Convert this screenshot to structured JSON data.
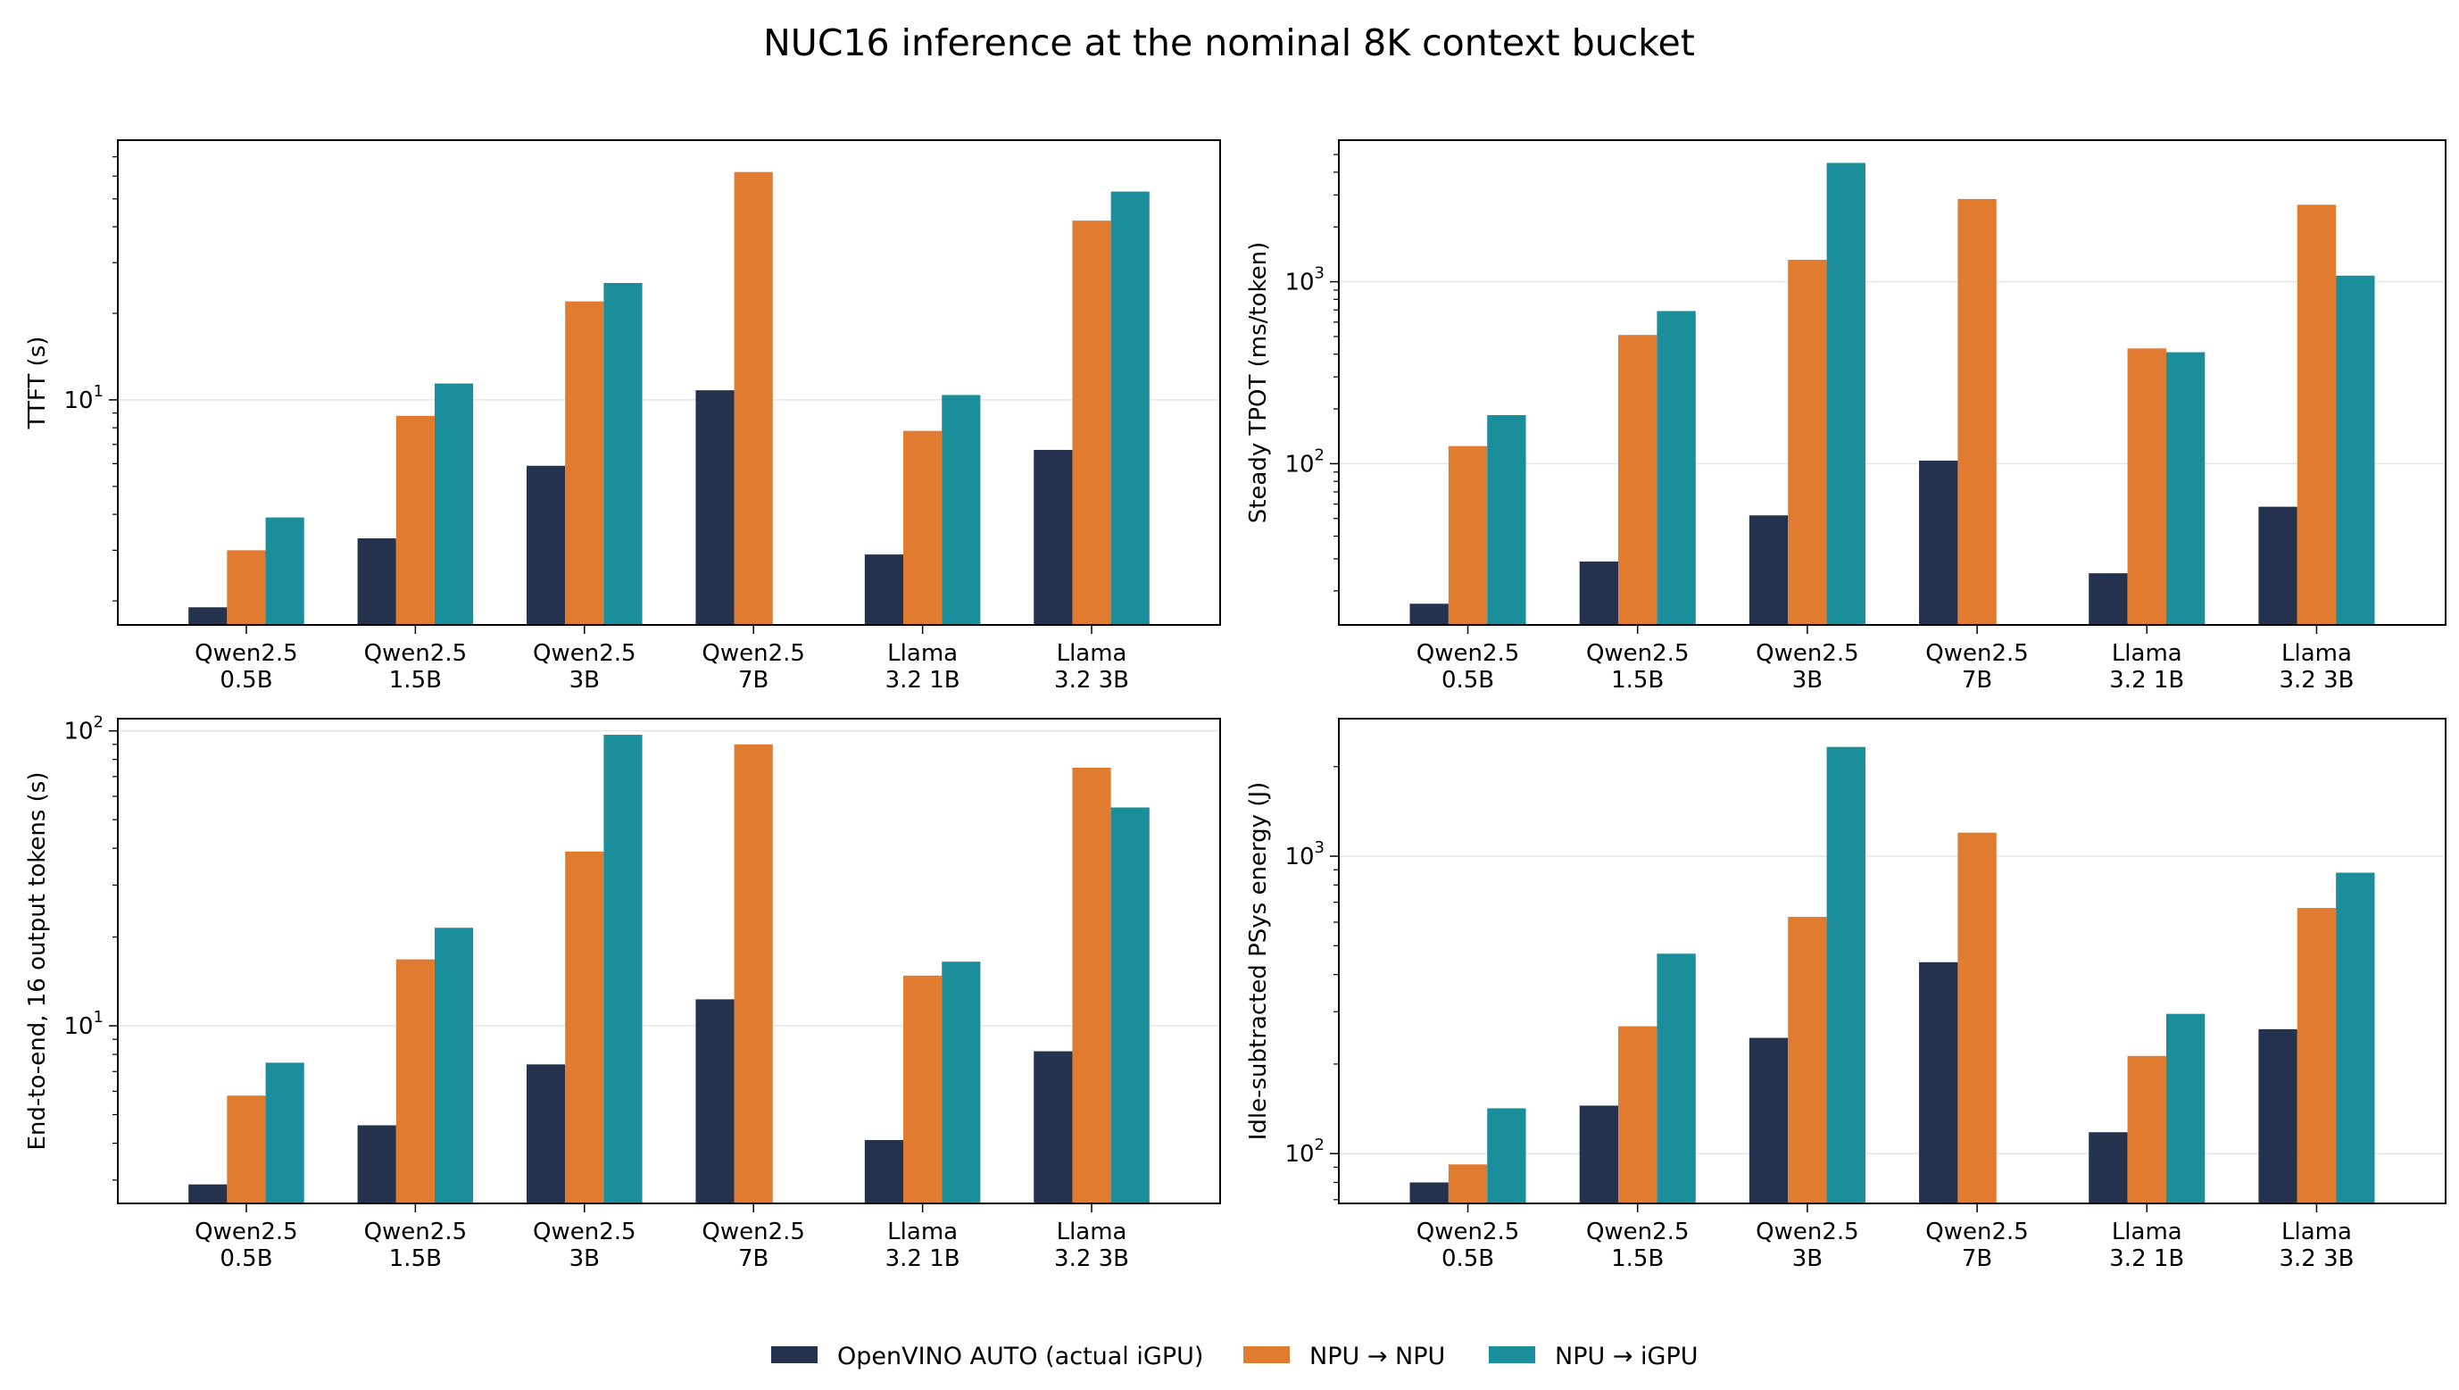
{
  "figure": {
    "title": "NUC16 inference at the nominal 8K context bucket"
  },
  "colors": {
    "series": [
      "#24324d",
      "#e07b2f",
      "#1a8f9b"
    ],
    "grid": "#e6e6e6",
    "axis": "#000000"
  },
  "legend": {
    "placement": "bottom-center",
    "items": [
      {
        "label": "OpenVINO AUTO (actual iGPU)",
        "color": "#24324d"
      },
      {
        "label": "NPU → NPU",
        "color": "#e07b2f"
      },
      {
        "label": "NPU → iGPU",
        "color": "#1a8f9b"
      }
    ]
  },
  "chart_data": [
    {
      "type": "bar",
      "scale": "log",
      "grid": "y-major",
      "ylabel": "TTFT (s)",
      "ylim": [
        1.65,
        80
      ],
      "categories": [
        [
          "Qwen2.5",
          "0.5B"
        ],
        [
          "Qwen2.5",
          "1.5B"
        ],
        [
          "Qwen2.5",
          "3B"
        ],
        [
          "Qwen2.5",
          "7B"
        ],
        [
          "Llama",
          "3.2 1B"
        ],
        [
          "Llama",
          "3.2 3B"
        ]
      ],
      "series": [
        {
          "name": "OpenVINO AUTO (actual iGPU)",
          "values": [
            1.9,
            3.3,
            5.9,
            10.8,
            2.9,
            6.7
          ]
        },
        {
          "name": "NPU → NPU",
          "values": [
            3.0,
            8.8,
            22.0,
            62.0,
            7.8,
            42.0
          ]
        },
        {
          "name": "NPU → iGPU",
          "values": [
            3.9,
            11.4,
            25.5,
            null,
            10.4,
            53.0
          ]
        }
      ]
    },
    {
      "type": "bar",
      "scale": "log",
      "grid": "y-major",
      "ylabel": "Steady TPOT (ms/token)",
      "ylim": [
        13,
        6000
      ],
      "categories": [
        [
          "Qwen2.5",
          "0.5B"
        ],
        [
          "Qwen2.5",
          "1.5B"
        ],
        [
          "Qwen2.5",
          "3B"
        ],
        [
          "Qwen2.5",
          "7B"
        ],
        [
          "Llama",
          "3.2 1B"
        ],
        [
          "Llama",
          "3.2 3B"
        ]
      ],
      "series": [
        {
          "name": "OpenVINO AUTO (actual iGPU)",
          "values": [
            17,
            29,
            52,
            104,
            25,
            58
          ]
        },
        {
          "name": "NPU → NPU",
          "values": [
            125,
            510,
            1320,
            2850,
            430,
            2650
          ]
        },
        {
          "name": "NPU → iGPU",
          "values": [
            185,
            690,
            4500,
            null,
            410,
            1080
          ]
        }
      ]
    },
    {
      "type": "bar",
      "scale": "log",
      "grid": "y-major",
      "ylabel": "End-to-end, 16 output tokens (s)",
      "ylim": [
        2.5,
        110
      ],
      "categories": [
        [
          "Qwen2.5",
          "0.5B"
        ],
        [
          "Qwen2.5",
          "1.5B"
        ],
        [
          "Qwen2.5",
          "3B"
        ],
        [
          "Qwen2.5",
          "7B"
        ],
        [
          "Llama",
          "3.2 1B"
        ],
        [
          "Llama",
          "3.2 3B"
        ]
      ],
      "series": [
        {
          "name": "OpenVINO AUTO (actual iGPU)",
          "values": [
            2.9,
            4.6,
            7.4,
            12.3,
            4.1,
            8.2
          ]
        },
        {
          "name": "NPU → NPU",
          "values": [
            5.8,
            16.8,
            39.0,
            90.0,
            14.8,
            75.0
          ]
        },
        {
          "name": "NPU → iGPU",
          "values": [
            7.5,
            21.5,
            97.0,
            null,
            16.5,
            55.0
          ]
        }
      ]
    },
    {
      "type": "bar",
      "scale": "log",
      "grid": "y-major",
      "ylabel": "Idle-subtracted PSys energy (J)",
      "ylim": [
        68,
        2900
      ],
      "categories": [
        [
          "Qwen2.5",
          "0.5B"
        ],
        [
          "Qwen2.5",
          "1.5B"
        ],
        [
          "Qwen2.5",
          "3B"
        ],
        [
          "Qwen2.5",
          "7B"
        ],
        [
          "Llama",
          "3.2 1B"
        ],
        [
          "Llama",
          "3.2 3B"
        ]
      ],
      "series": [
        {
          "name": "OpenVINO AUTO (actual iGPU)",
          "values": [
            80,
            145,
            245,
            440,
            118,
            262
          ]
        },
        {
          "name": "NPU → NPU",
          "values": [
            92,
            268,
            625,
            1200,
            213,
            670
          ]
        },
        {
          "name": "NPU → iGPU",
          "values": [
            142,
            470,
            2330,
            null,
            295,
            880
          ]
        }
      ]
    }
  ]
}
